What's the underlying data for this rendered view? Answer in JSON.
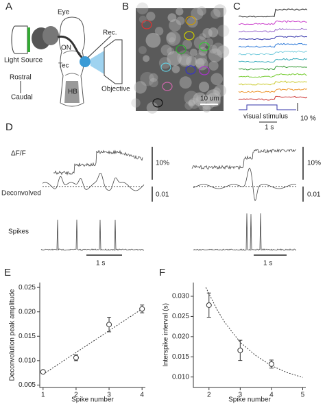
{
  "panel_labels": [
    "A",
    "B",
    "C",
    "D",
    "E",
    "F"
  ],
  "panel_a": {
    "eye": "Eye",
    "light_source": "Light Source",
    "on": "ON",
    "tec": "Tec",
    "hb": "HB",
    "rec": "Rec.",
    "objective": "Objective",
    "rostral": "Rostral",
    "caudal": "Caudal"
  },
  "panel_b": {
    "scale": "10 um"
  },
  "panel_c": {
    "stimulus": "visual stimulus",
    "percent": "10 %",
    "time": "1 s"
  },
  "panel_d": {
    "dff": "ΔF/F",
    "deconvolved": "Deconvolved",
    "spikes": "Spikes",
    "left": {
      "dff_scale": "10%",
      "dec_scale": "0.01",
      "time": "1 s"
    },
    "right": {
      "dff_scale": "10%",
      "dec_scale": "0.01",
      "time": "1 s"
    }
  },
  "chart_data": [
    {
      "type": "scatter",
      "xlabel": "Spike number",
      "ylabel": "Deconvolution peak amplitude",
      "x": [
        1,
        2,
        3,
        4
      ],
      "values": [
        0.0077,
        0.0106,
        0.0174,
        0.0206
      ],
      "errors": [
        0.0003,
        0.0006,
        0.0015,
        0.0008
      ],
      "fit": {
        "x": [
          1,
          4
        ],
        "values": [
          0.0072,
          0.0206
        ]
      },
      "xlim": [
        0.9,
        4.1
      ],
      "xticks": [
        1,
        2,
        3,
        4
      ],
      "ylim": [
        0.0045,
        0.026
      ],
      "yticks": [
        0.005,
        {
          "value": 0.01,
          "label": "0.010"
        },
        0.015,
        {
          "value": 0.02,
          "label": "0.020"
        },
        0.025
      ]
    },
    {
      "type": "scatter",
      "xlabel": "Spike number",
      "ylabel": "Interspike interval (s)",
      "x": [
        2,
        3,
        4
      ],
      "values": [
        0.0278,
        0.0166,
        0.0132
      ],
      "errors": [
        0.003,
        0.0025,
        0.001
      ],
      "fit": {
        "x": [
          1.9,
          2.25,
          2.5,
          3,
          3.5,
          4,
          4.5,
          5
        ],
        "values": [
          0.0322,
          0.0268,
          0.0236,
          0.0186,
          0.0153,
          0.0128,
          0.0111,
          0.0099
        ]
      },
      "xlim": [
        1.5,
        5.1
      ],
      "xticks": [
        2,
        3,
        4,
        5
      ],
      "ylim": [
        0.0074,
        0.0334
      ],
      "yticks": [
        {
          "value": 0.01,
          "label": "0.010"
        },
        0.015,
        {
          "value": 0.02,
          "label": "0.020"
        },
        0.025,
        {
          "value": 0.03,
          "label": "0.030"
        }
      ]
    }
  ]
}
